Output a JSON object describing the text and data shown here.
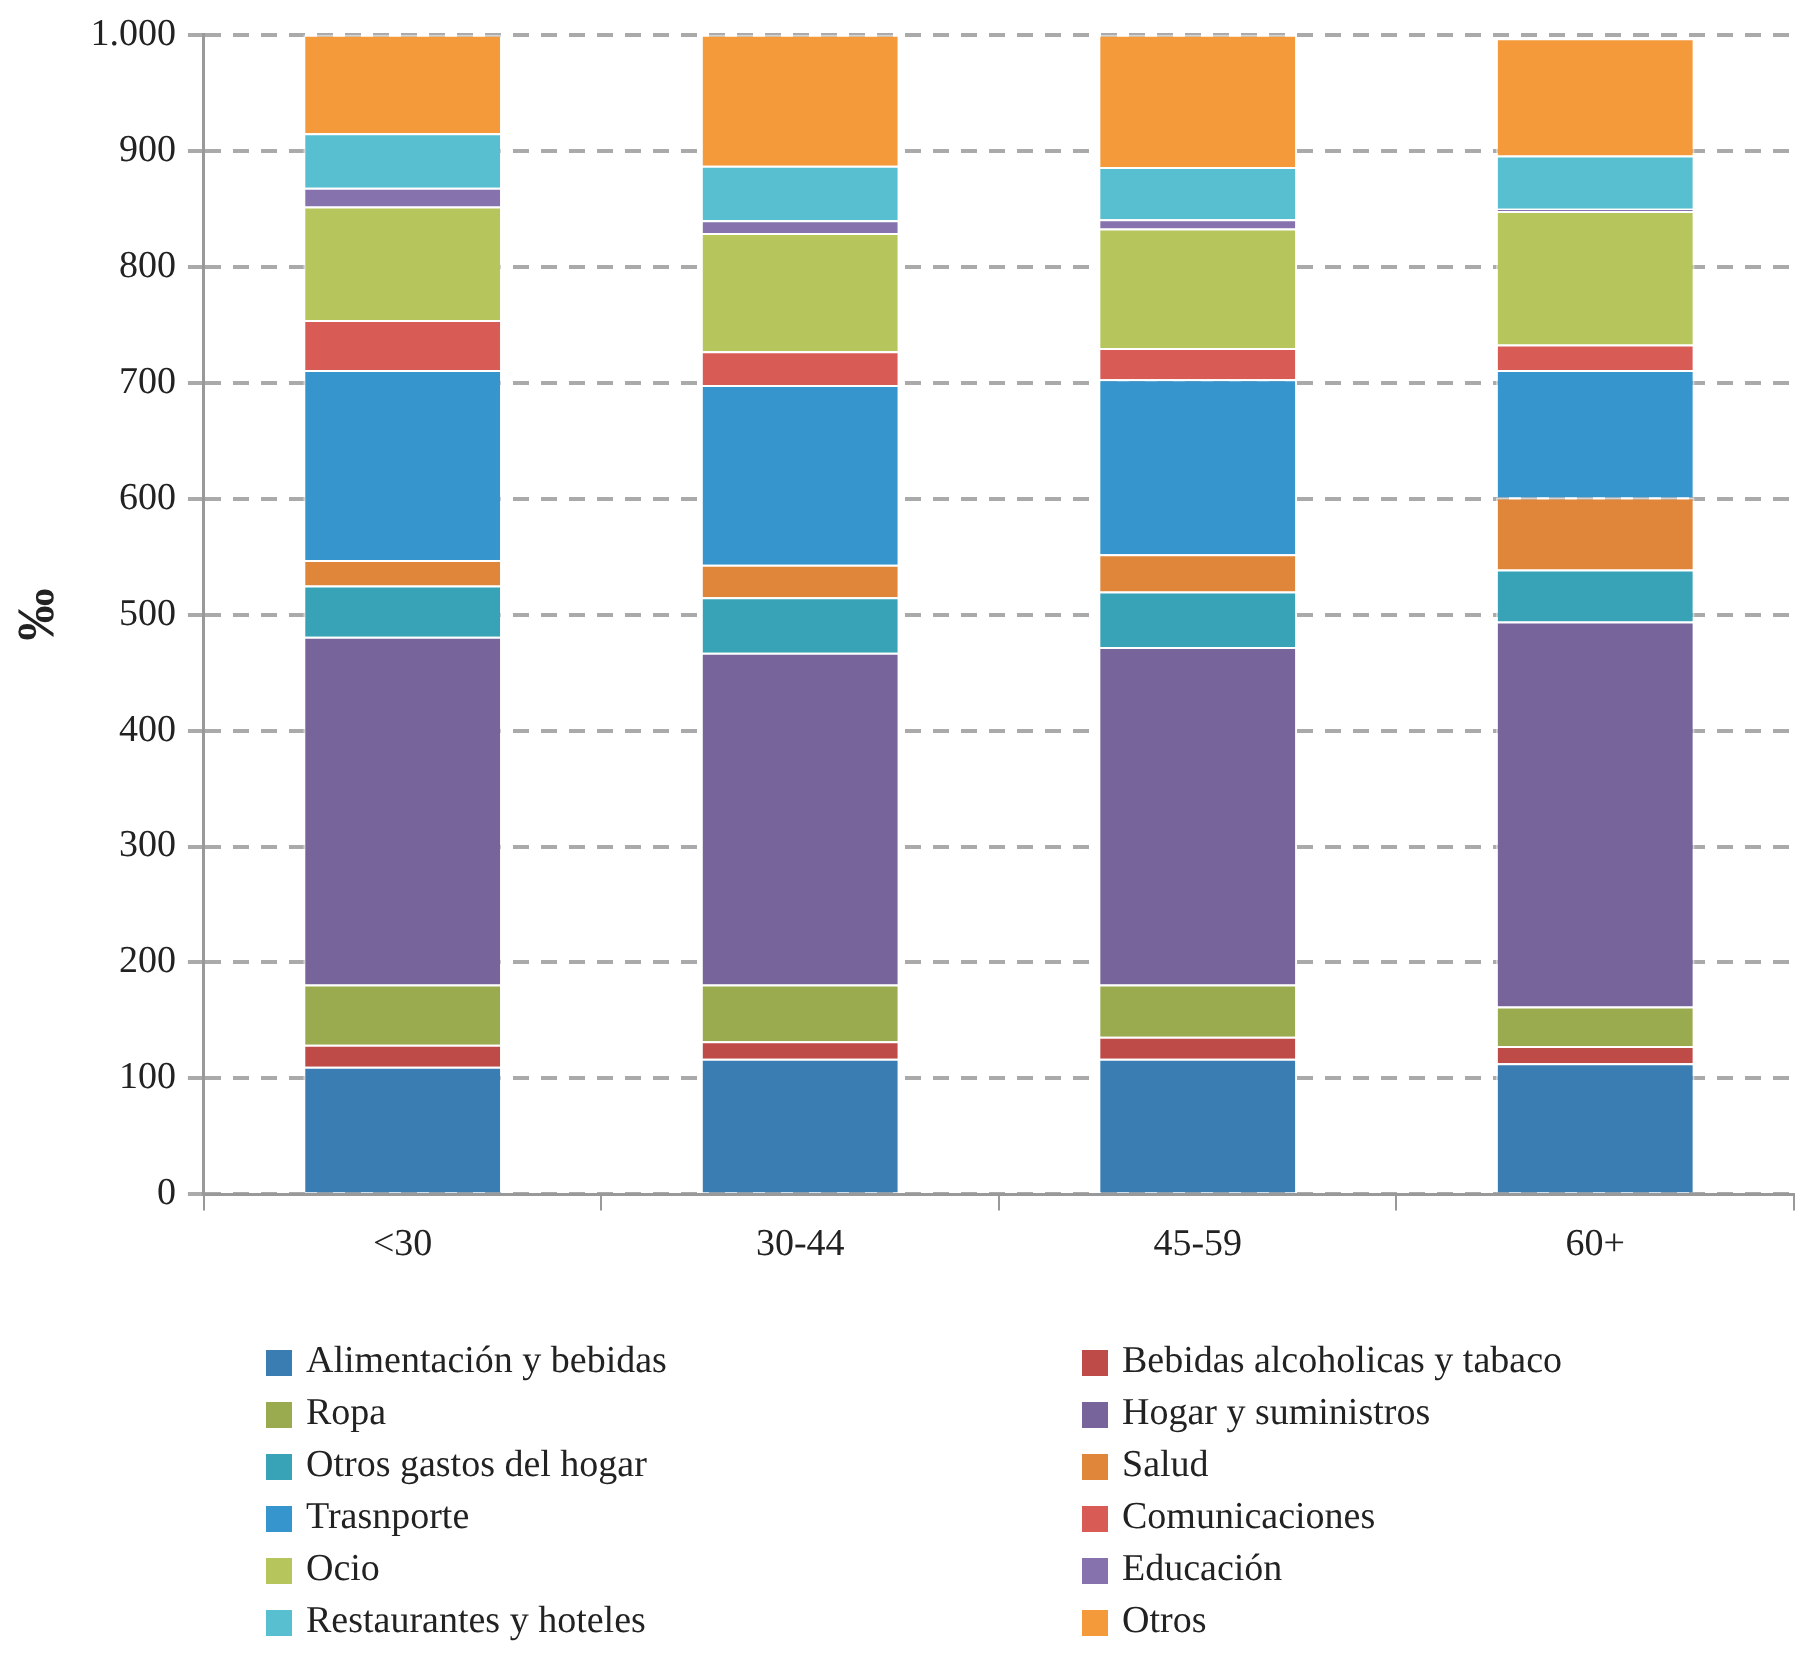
{
  "chart_data": {
    "type": "bar",
    "stacked": true,
    "ylabel": "‰",
    "categories": [
      "<30",
      "30-44",
      "45-59",
      "60+"
    ],
    "ylim": [
      0,
      1000
    ],
    "yticks": [
      0,
      100,
      200,
      300,
      400,
      500,
      600,
      700,
      800,
      900,
      {
        "value": 1000,
        "label": "1.000"
      }
    ],
    "grid": "y",
    "legend": "bottom",
    "series": [
      {
        "name": "Alimentación y bebidas",
        "color": "#3a7db3",
        "values": [
          110,
          117,
          117,
          113
        ]
      },
      {
        "name": "Bebidas alcoholicas y tabaco",
        "color": "#be4b48",
        "values": [
          19,
          15,
          19,
          15
        ]
      },
      {
        "name": "Ropa",
        "color": "#9aab4f",
        "values": [
          52,
          49,
          45,
          34
        ]
      },
      {
        "name": "Hogar y suministros",
        "color": "#77649a",
        "values": [
          300,
          286,
          291,
          332
        ]
      },
      {
        "name": "Otros gastos del hogar",
        "color": "#38a3b6",
        "values": [
          44,
          48,
          48,
          45
        ]
      },
      {
        "name": "Salud",
        "color": "#e0863a",
        "values": [
          22,
          28,
          32,
          62
        ]
      },
      {
        "name": "Trasnporte",
        "color": "#3595cc",
        "values": [
          164,
          155,
          151,
          110
        ]
      },
      {
        "name": "Comunicaciones",
        "color": "#d95b55",
        "values": [
          43,
          29,
          27,
          22
        ]
      },
      {
        "name": "Ocio",
        "color": "#b7c65c",
        "values": [
          98,
          102,
          103,
          115
        ]
      },
      {
        "name": "Educación",
        "color": "#8673ae",
        "values": [
          16,
          11,
          8,
          2
        ]
      },
      {
        "name": "Restaurantes y hoteles",
        "color": "#58bfd1",
        "values": [
          47,
          47,
          45,
          46
        ]
      },
      {
        "name": "Otros",
        "color": "#f59a3b",
        "values": [
          85,
          113,
          114,
          101
        ]
      }
    ]
  }
}
